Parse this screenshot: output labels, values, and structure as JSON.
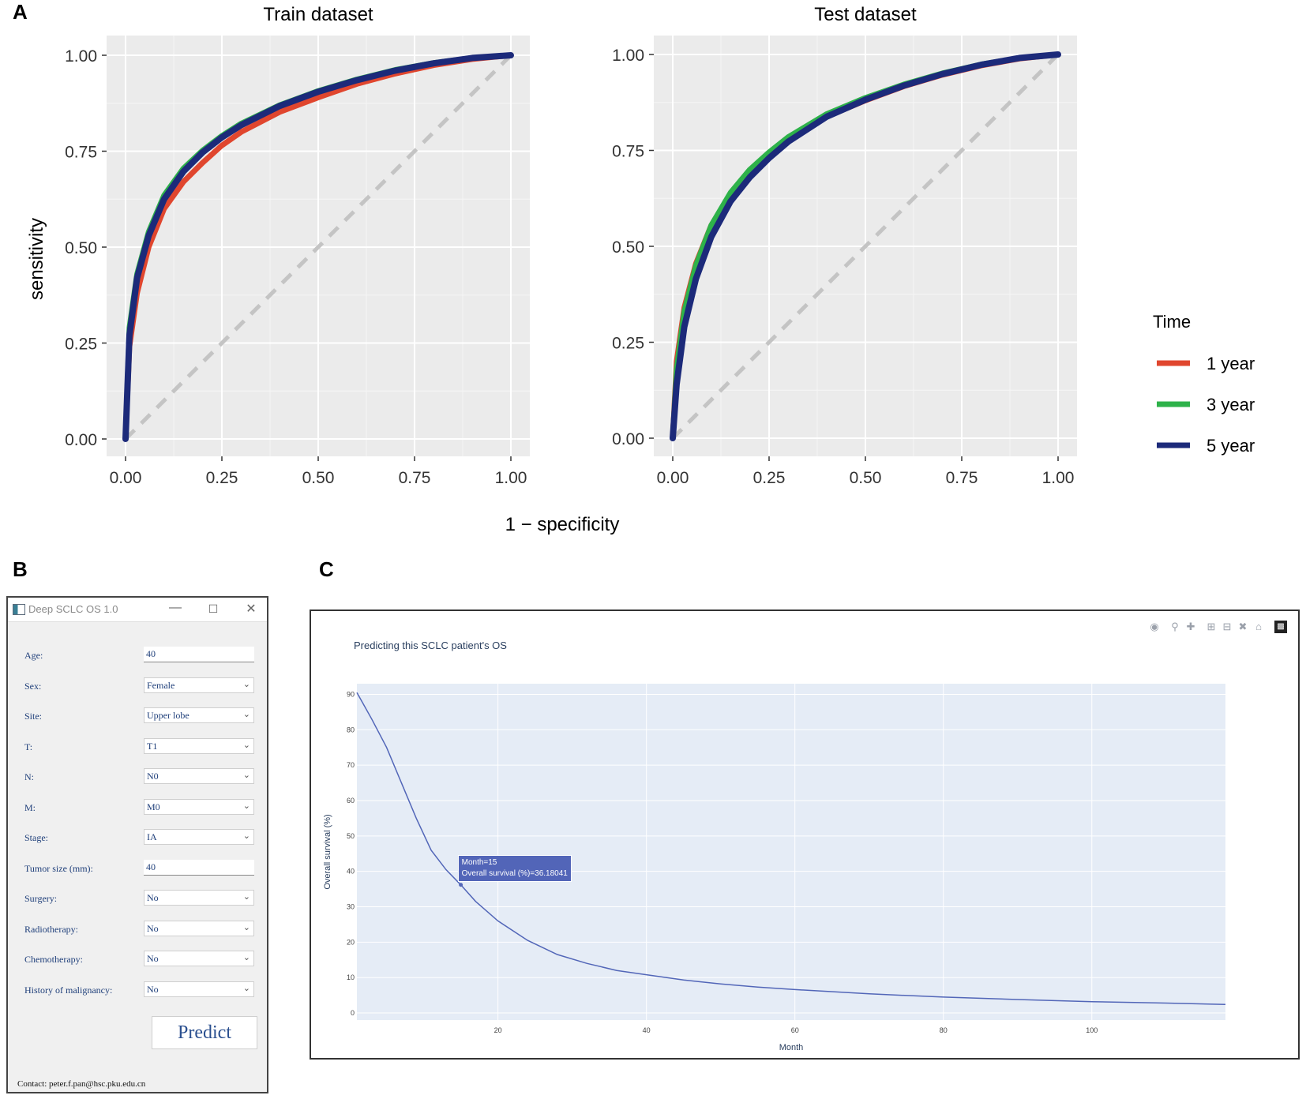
{
  "panels": {
    "a": "A",
    "b": "B",
    "c": "C"
  },
  "colors": {
    "one_year": "#e0462e",
    "three_year": "#2eb24a",
    "five_year": "#1c2a7a",
    "panel_bg": "#ebebeb",
    "diag": "#c4c4c4",
    "plotly_bg": "#e5ecf6",
    "plotly_line": "#5266b8"
  },
  "chart_data": [
    {
      "type": "line",
      "title": "Train dataset",
      "xlabel": "1 − specificity",
      "ylabel": "sensitivity",
      "xlim": [
        0,
        1
      ],
      "ylim": [
        0,
        1
      ],
      "x_ticks": [
        "0.00",
        "0.25",
        "0.50",
        "0.75",
        "1.00"
      ],
      "y_ticks": [
        "0.00",
        "0.25",
        "0.50",
        "0.75",
        "1.00"
      ],
      "x": [
        0,
        0.01,
        0.03,
        0.06,
        0.1,
        0.15,
        0.2,
        0.25,
        0.3,
        0.4,
        0.5,
        0.6,
        0.7,
        0.8,
        0.9,
        1.0
      ],
      "series": [
        {
          "name": "1 year",
          "color_key": "one_year",
          "values": [
            0,
            0.24,
            0.38,
            0.5,
            0.6,
            0.67,
            0.72,
            0.765,
            0.8,
            0.852,
            0.89,
            0.925,
            0.952,
            0.974,
            0.99,
            1.0
          ]
        },
        {
          "name": "3 year",
          "color_key": "three_year",
          "values": [
            0,
            0.29,
            0.43,
            0.54,
            0.635,
            0.705,
            0.752,
            0.79,
            0.822,
            0.87,
            0.907,
            0.937,
            0.962,
            0.98,
            0.993,
            1.0
          ]
        },
        {
          "name": "5 year",
          "color_key": "five_year",
          "values": [
            0,
            0.27,
            0.42,
            0.53,
            0.625,
            0.697,
            0.747,
            0.786,
            0.818,
            0.868,
            0.905,
            0.935,
            0.96,
            0.979,
            0.993,
            1.0
          ]
        }
      ],
      "reference_line": [
        [
          0,
          0
        ],
        [
          1,
          1
        ]
      ]
    },
    {
      "type": "line",
      "title": "Test dataset",
      "xlim": [
        0,
        1
      ],
      "ylim": [
        0,
        1
      ],
      "x_ticks": [
        "0.00",
        "0.25",
        "0.50",
        "0.75",
        "1.00"
      ],
      "y_ticks": [
        "0.00",
        "0.25",
        "0.50",
        "0.75",
        "1.00"
      ],
      "x": [
        0,
        0.01,
        0.03,
        0.06,
        0.1,
        0.15,
        0.2,
        0.25,
        0.3,
        0.4,
        0.5,
        0.6,
        0.7,
        0.8,
        0.9,
        1.0
      ],
      "series": [
        {
          "name": "1 year",
          "color_key": "one_year",
          "values": [
            0,
            0.2,
            0.34,
            0.455,
            0.555,
            0.635,
            0.69,
            0.74,
            0.777,
            0.838,
            0.88,
            0.917,
            0.947,
            0.971,
            0.989,
            1.0
          ]
        },
        {
          "name": "3 year",
          "color_key": "three_year",
          "values": [
            0,
            0.18,
            0.33,
            0.45,
            0.555,
            0.64,
            0.7,
            0.745,
            0.785,
            0.845,
            0.887,
            0.922,
            0.951,
            0.974,
            0.991,
            1.0
          ]
        },
        {
          "name": "5 year",
          "color_key": "five_year",
          "values": [
            0,
            0.14,
            0.29,
            0.415,
            0.525,
            0.617,
            0.68,
            0.73,
            0.773,
            0.838,
            0.882,
            0.919,
            0.949,
            0.973,
            0.991,
            1.0
          ]
        }
      ],
      "reference_line": [
        [
          0,
          0
        ],
        [
          1,
          1
        ]
      ]
    },
    {
      "type": "line",
      "title": "Predicting this SCLC patient's OS",
      "xlabel": "Month",
      "ylabel": "Overall survival (%)",
      "xlim": [
        1,
        118
      ],
      "ylim": [
        -2,
        93
      ],
      "x_ticks": [
        20,
        40,
        60,
        80,
        100
      ],
      "y_ticks": [
        0,
        10,
        20,
        30,
        40,
        50,
        60,
        70,
        80,
        90
      ],
      "series": [
        {
          "name": "Overall survival",
          "x": [
            1,
            3,
            5,
            7,
            9,
            11,
            13,
            15,
            17,
            20,
            24,
            28,
            32,
            36,
            40,
            45,
            50,
            55,
            60,
            70,
            80,
            90,
            100,
            110,
            118
          ],
          "values": [
            90.5,
            83,
            75,
            65,
            55,
            46,
            40.5,
            36.18,
            31.5,
            26,
            20.5,
            16.5,
            14,
            12,
            10.8,
            9.3,
            8.2,
            7.3,
            6.6,
            5.4,
            4.5,
            3.8,
            3.2,
            2.8,
            2.4
          ]
        }
      ],
      "hover": {
        "line1": "Month=15",
        "line2": "Overall survival (%)=36.18041",
        "x": 15,
        "y": 36.18
      }
    }
  ],
  "legend": {
    "title": "Time",
    "items": [
      {
        "label": "1 year",
        "color_key": "one_year"
      },
      {
        "label": "3 year",
        "color_key": "three_year"
      },
      {
        "label": "5 year",
        "color_key": "five_year"
      }
    ]
  },
  "app": {
    "title": "Deep SCLC OS 1.0",
    "fields": [
      {
        "label": "Age:",
        "value": "40",
        "kind": "input"
      },
      {
        "label": "Sex:",
        "value": "Female",
        "kind": "select"
      },
      {
        "label": "Site:",
        "value": "Upper lobe",
        "kind": "select"
      },
      {
        "label": "T:",
        "value": "T1",
        "kind": "select"
      },
      {
        "label": "N:",
        "value": "N0",
        "kind": "select"
      },
      {
        "label": "M:",
        "value": "M0",
        "kind": "select"
      },
      {
        "label": "Stage:",
        "value": "IA",
        "kind": "select"
      },
      {
        "label": "Tumor size (mm):",
        "value": "40",
        "kind": "input"
      },
      {
        "label": "Surgery:",
        "value": "No",
        "kind": "select"
      },
      {
        "label": "Radiotherapy:",
        "value": "No",
        "kind": "select"
      },
      {
        "label": "Chemotherapy:",
        "value": "No",
        "kind": "select"
      },
      {
        "label": "History of malignancy:",
        "value": "No",
        "kind": "select"
      }
    ],
    "predict_label": "Predict",
    "contact": "Contact:  peter.f.pan@hsc.pku.edu.cn"
  }
}
